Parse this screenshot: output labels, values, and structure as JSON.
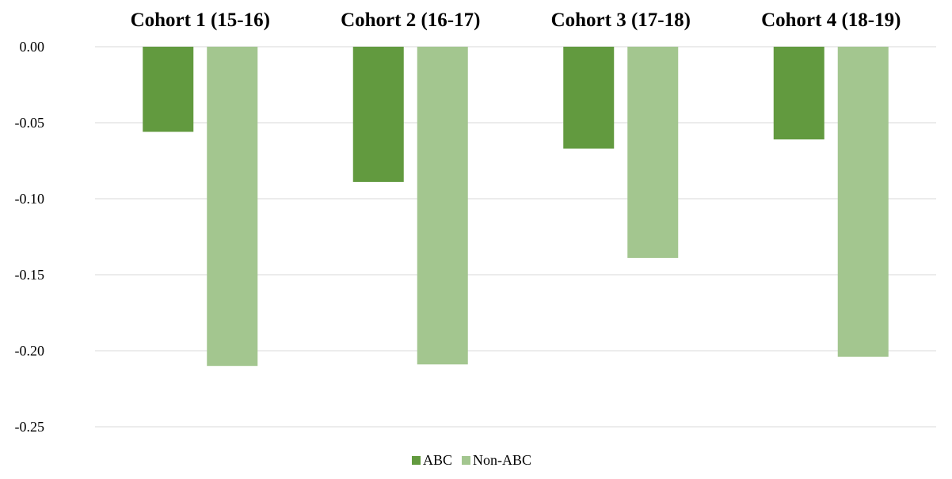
{
  "chart_data": {
    "type": "bar",
    "categories": [
      "Cohort 1 (15-16)",
      "Cohort 2 (16-17)",
      "Cohort 3 (17-18)",
      "Cohort 4 (18-19)"
    ],
    "series": [
      {
        "name": "ABC",
        "values": [
          -0.056,
          -0.089,
          -0.067,
          -0.061
        ],
        "color": "#629a3f"
      },
      {
        "name": "Non-ABC",
        "values": [
          -0.21,
          -0.209,
          -0.139,
          -0.204
        ],
        "color": "#a3c68f"
      }
    ],
    "ylim": [
      -0.25,
      0.0
    ],
    "yticks": [
      "0.00",
      "-0.05",
      "-0.10",
      "-0.15",
      "-0.20",
      "-0.25"
    ],
    "category_axis_position": "top",
    "grid": true,
    "legend_position": "bottom-center",
    "title": "",
    "xlabel": "",
    "ylabel": ""
  }
}
